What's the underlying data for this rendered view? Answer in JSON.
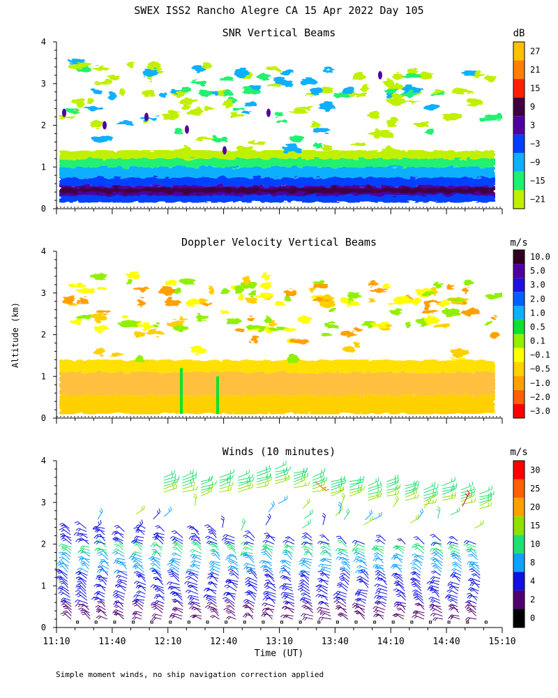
{
  "header": {
    "title": "SWEX ISS2 Rancho Alegre CA  15 Apr 2022 Day 105"
  },
  "footer": {
    "note": "Simple moment winds, no ship navigation correction applied"
  },
  "shared_axes": {
    "ylabel": "Altitude (km)",
    "xlabel": "Time (UT)",
    "x_ticks": [
      "11:10",
      "11:40",
      "12:10",
      "12:40",
      "13:10",
      "13:40",
      "14:10",
      "14:40",
      "15:10"
    ],
    "y_ticks": [
      "0",
      "1",
      "2",
      "3",
      "4"
    ],
    "ylim": [
      0,
      4
    ]
  },
  "chart_data": [
    {
      "type": "heatmap",
      "title": "SNR Vertical Beams",
      "colorbar": {
        "unit": "dB",
        "labels": [
          "27",
          "21",
          "15",
          "9",
          "3",
          "−3",
          "−9",
          "−15",
          "−21"
        ],
        "colors": [
          "#FFC000",
          "#FF8000",
          "#FF2000",
          "#400040",
          "#5000A0",
          "#0040FF",
          "#10B0FF",
          "#20F070",
          "#C0F000"
        ]
      },
      "layers": [
        {
          "bottom": 0.15,
          "top": 0.38,
          "color": "#0040FF"
        },
        {
          "bottom": 0.32,
          "top": 0.55,
          "color": "#5000A0"
        },
        {
          "bottom": 0.38,
          "top": 0.5,
          "color": "#400040"
        },
        {
          "bottom": 0.55,
          "top": 0.75,
          "color": "#0040FF"
        },
        {
          "bottom": 0.75,
          "top": 1.0,
          "color": "#10B0FF"
        },
        {
          "bottom": 1.0,
          "top": 1.2,
          "color": "#20F070"
        },
        {
          "bottom": 1.2,
          "top": 1.4,
          "color": "#C0F000"
        }
      ]
    },
    {
      "type": "heatmap",
      "title": "Doppler Velocity Vertical Beams",
      "colorbar": {
        "unit": "m/s",
        "labels": [
          "10.0",
          "5.0",
          "3.0",
          "2.0",
          "1.0",
          "0.5",
          "0.1",
          "−0.1",
          "−0.5",
          "−1.0",
          "−2.0",
          "−3.0"
        ],
        "colors": [
          "#300020",
          "#5000A0",
          "#2010E0",
          "#0060FF",
          "#10B0FF",
          "#10E030",
          "#90F000",
          "#FFFF00",
          "#FFD000",
          "#FFA000",
          "#FF6000",
          "#FF0000"
        ]
      },
      "layers": [
        {
          "bottom": 0.1,
          "top": 0.55,
          "color": "#FFD000"
        },
        {
          "bottom": 0.55,
          "top": 1.1,
          "color": "#FFC040"
        },
        {
          "bottom": 1.1,
          "top": 1.4,
          "color": "#FFE000"
        }
      ]
    },
    {
      "type": "scatter",
      "title": "Winds (10 minutes)",
      "colorbar": {
        "unit": "m/s",
        "labels": [
          "30",
          "25",
          "20",
          "15",
          "10",
          "8",
          "4",
          "2",
          "0"
        ],
        "colors": [
          "#FF0000",
          "#FF6000",
          "#FFA000",
          "#90E000",
          "#20E070",
          "#10A0FF",
          "#1010E0",
          "#500070",
          "#000000"
        ]
      },
      "profile_times": [
        "11:20",
        "11:30",
        "11:40",
        "11:50",
        "12:00",
        "12:10",
        "12:20",
        "12:30",
        "12:40",
        "12:50",
        "13:00",
        "13:10",
        "13:20",
        "13:30",
        "13:40",
        "13:50",
        "14:00",
        "14:10",
        "14:20",
        "14:30",
        "14:40",
        "14:50",
        "15:00"
      ],
      "profile_top_km": [
        2.4,
        2.4,
        2.4,
        2.3,
        2.4,
        2.3,
        2.2,
        2.3,
        2.3,
        2.2,
        2.2,
        2.2,
        2.1,
        2.2,
        2.1,
        2.0,
        2.0,
        2.1,
        2.0,
        2.0,
        2.1,
        2.1,
        2.0
      ],
      "upper_layer": {
        "times": [
          "12:10",
          "12:20",
          "12:30",
          "12:40",
          "12:50",
          "13:00",
          "13:10",
          "13:20",
          "13:30",
          "13:40",
          "13:50",
          "14:00",
          "14:10",
          "14:20",
          "14:30",
          "14:40",
          "14:50",
          "15:00"
        ],
        "altitude_km": [
          3.6,
          3.6,
          3.5,
          3.6,
          3.6,
          3.7,
          3.8,
          3.7,
          3.6,
          3.5,
          3.5,
          3.4,
          3.5,
          3.4,
          3.3,
          3.4,
          3.3,
          3.2
        ]
      }
    }
  ]
}
